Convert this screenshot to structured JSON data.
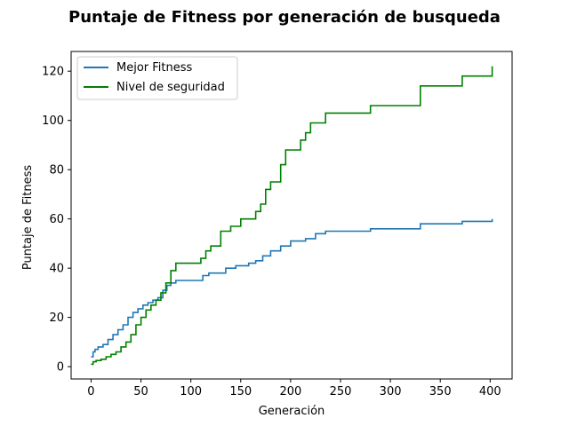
{
  "chart_data": {
    "type": "line",
    "title": "Puntaje de Fitness por generación de busqueda",
    "xlabel": "Generación",
    "ylabel": "Puntaje de Fitness",
    "xlim": [
      -20,
      422
    ],
    "ylim": [
      -5,
      128
    ],
    "xticks": [
      0,
      50,
      100,
      150,
      200,
      250,
      300,
      350,
      400
    ],
    "yticks": [
      0,
      20,
      40,
      60,
      80,
      100,
      120
    ],
    "grid": false,
    "legend": "top-left",
    "series": [
      {
        "name": "Mejor Fitness",
        "color": "#1f77b4",
        "x": [
          0,
          2,
          4,
          7,
          12,
          17,
          22,
          27,
          32,
          37,
          42,
          47,
          52,
          57,
          62,
          67,
          72,
          76,
          80,
          85,
          90,
          100,
          112,
          118,
          125,
          135,
          145,
          158,
          165,
          172,
          180,
          190,
          200,
          215,
          225,
          235,
          250,
          265,
          280,
          300,
          315,
          330,
          345,
          360,
          372,
          385,
          400,
          402
        ],
        "y": [
          4,
          6,
          7,
          8,
          9,
          11,
          13,
          15,
          17,
          20,
          22,
          23.5,
          25,
          26,
          27,
          28,
          31,
          33,
          34,
          35,
          35,
          35,
          37,
          38,
          38,
          40,
          41,
          42,
          43,
          45,
          47,
          49,
          51,
          52,
          54,
          55,
          55,
          55,
          56,
          56,
          56,
          58,
          58,
          58,
          59,
          59,
          59,
          60
        ]
      },
      {
        "name": "Nivel de seguridad",
        "color": "#008000",
        "x": [
          0,
          2,
          5,
          10,
          15,
          20,
          25,
          30,
          35,
          40,
          45,
          50,
          55,
          60,
          65,
          70,
          75,
          80,
          85,
          95,
          110,
          115,
          120,
          130,
          140,
          150,
          160,
          165,
          170,
          175,
          180,
          185,
          190,
          195,
          200,
          210,
          215,
          220,
          225,
          235,
          250,
          265,
          280,
          300,
          315,
          330,
          345,
          360,
          372,
          385,
          400,
          402
        ],
        "y": [
          1,
          2,
          2.5,
          3,
          4,
          5,
          6,
          8,
          10,
          13,
          17,
          20,
          23,
          25,
          27,
          30,
          34,
          39,
          42,
          42,
          44,
          47,
          49,
          55,
          57,
          60,
          60,
          63,
          66,
          72,
          75,
          75,
          82,
          88,
          88,
          92,
          95,
          99,
          99,
          103,
          103,
          103,
          106,
          106,
          106,
          114,
          114,
          114,
          118,
          118,
          118,
          122
        ]
      }
    ]
  }
}
